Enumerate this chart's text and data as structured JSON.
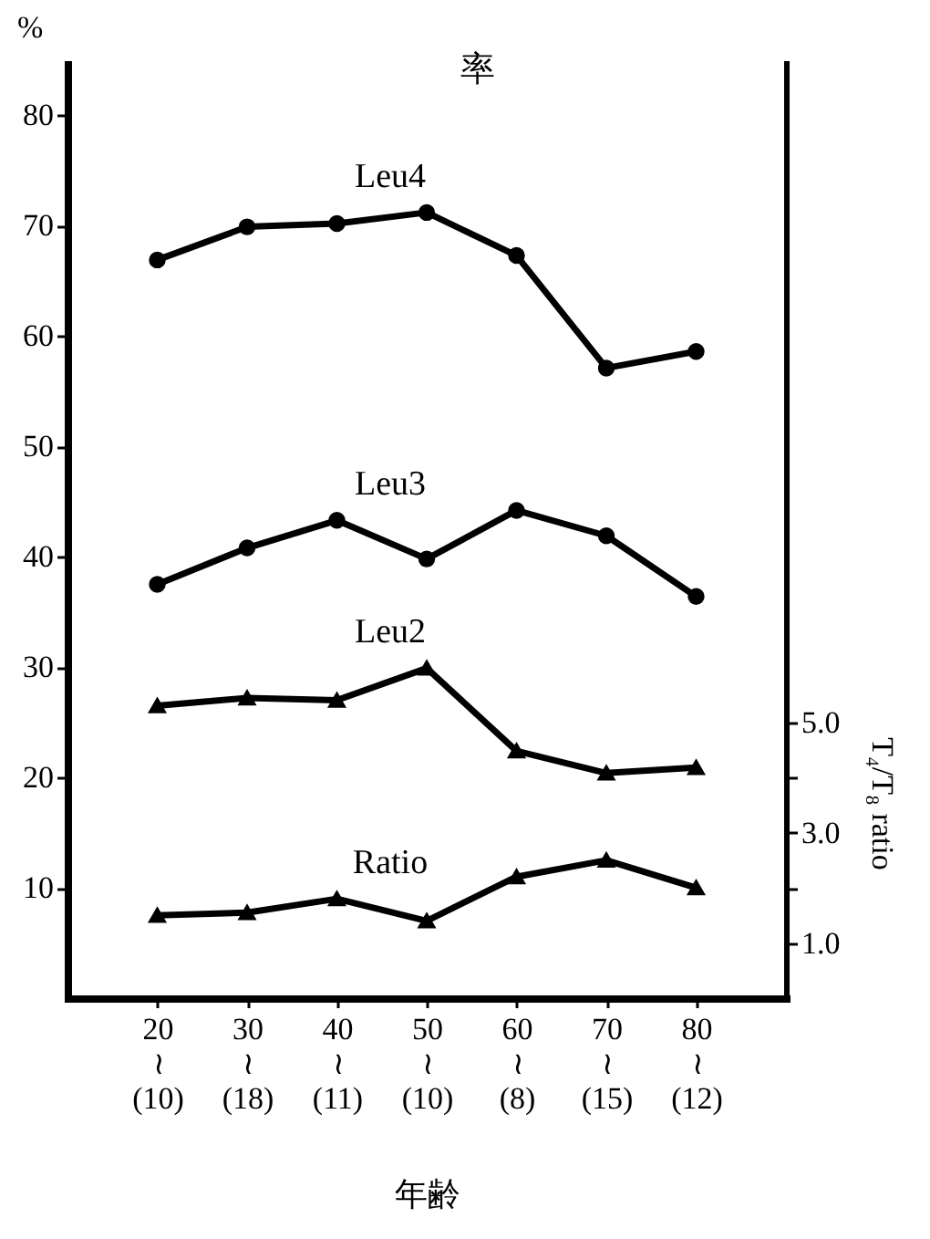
{
  "chart_data": {
    "type": "line",
    "title": "率",
    "xlabel": "年齢",
    "ylabel": "%",
    "y2label": "T₄/T₈ ratio",
    "categories": [
      "20\n≀\n(10)",
      "30\n≀\n(18)",
      "40\n≀\n(11)",
      "50\n≀\n(10)",
      "60\n≀\n(8)",
      "70\n≀\n(15)",
      "80\n≀\n(12)"
    ],
    "series": [
      {
        "name": "Leu4",
        "color": "#000000",
        "marker": "circle",
        "values": [
          66.9,
          69.9,
          70.2,
          71.2,
          67.3,
          57.1,
          58.6
        ]
      },
      {
        "name": "Leu3",
        "color": "#000000",
        "marker": "circle",
        "values": [
          37.5,
          40.8,
          43.3,
          39.8,
          44.2,
          41.9,
          36.4
        ]
      },
      {
        "name": "Leu2",
        "color": "#000000",
        "marker": "triangle",
        "values": [
          26.5,
          27.2,
          27.0,
          29.9,
          22.4,
          20.4,
          20.9
        ]
      },
      {
        "name": "Ratio",
        "color": "#000000",
        "marker": "triangle",
        "axis": "y2",
        "values": [
          1.5,
          1.55,
          1.8,
          1.4,
          2.2,
          2.5,
          2.0
        ]
      }
    ],
    "ylim": [
      0,
      85
    ],
    "yticks": [
      10,
      20,
      30,
      40,
      50,
      60,
      70,
      80
    ],
    "y2lim": [
      0,
      17
    ],
    "y2ticks": [
      {
        "value": 1,
        "label": "1.0"
      },
      {
        "value": 2,
        "label": null
      },
      {
        "value": 3,
        "label": "3.0"
      },
      {
        "value": 4,
        "label": null
      },
      {
        "value": 5,
        "label": "5.0"
      }
    ],
    "grid": false,
    "legend": false,
    "line_style": "solid"
  }
}
